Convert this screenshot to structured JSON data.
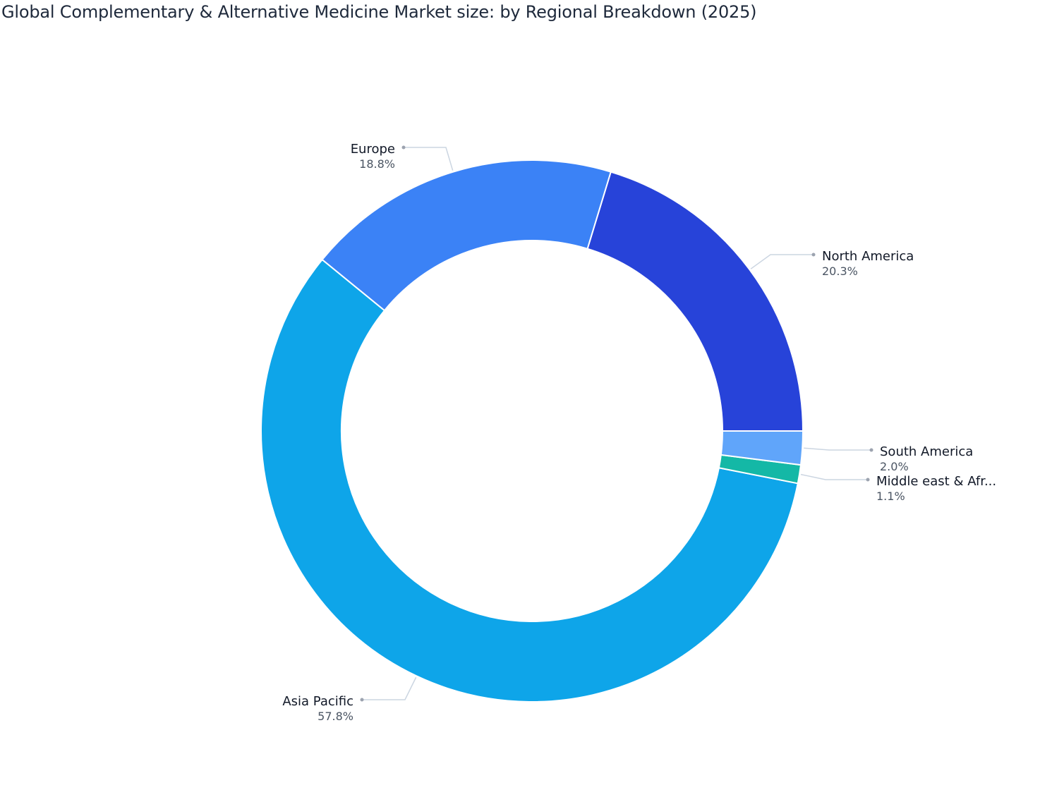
{
  "chart_data": {
    "type": "pie",
    "subtype": "donut",
    "title": "Global Complementary & Alternative Medicine Market size: by Regional Breakdown (2025)",
    "categories": [
      "North America",
      "Europe",
      "Asia Pacific",
      "Middle east & Africa",
      "South America"
    ],
    "values": [
      20.3,
      18.8,
      57.8,
      1.1,
      2.0
    ],
    "unit": "%",
    "colors": [
      "#2743d9",
      "#3b82f6",
      "#0ea5e9",
      "#14b8a6",
      "#60a5fa"
    ],
    "labels": [
      {
        "name": "North America",
        "value": "20.3%"
      },
      {
        "name": "Europe",
        "value": "18.8%"
      },
      {
        "name": "Asia Pacific",
        "value": "57.8%"
      },
      {
        "name": "Middle east & Afr...",
        "value": "1.1%"
      },
      {
        "name": "South America",
        "value": "2.0%"
      }
    ],
    "legend": "none",
    "start_angle_deg": 0,
    "direction": "counterclockwise"
  }
}
